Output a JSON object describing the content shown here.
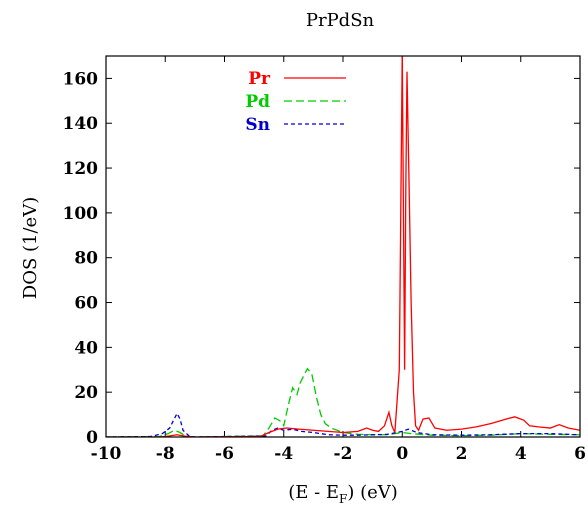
{
  "chart_data": {
    "type": "line",
    "title": "PrPdSn",
    "xlabel": {
      "main": "(E - E",
      "sub": "F",
      "tail": ") (eV)"
    },
    "ylabel": "DOS (1/eV)",
    "xlim": [
      -10,
      6
    ],
    "ylim": [
      0,
      170
    ],
    "xticks": [
      -10,
      -8,
      -6,
      -4,
      -2,
      0,
      2,
      4,
      6
    ],
    "yticks": [
      0,
      20,
      40,
      60,
      80,
      100,
      120,
      140,
      160
    ],
    "legend_position": "top-left (inside plot)",
    "series": [
      {
        "name": "Pr",
        "color": "#ff0000",
        "dash": "solid",
        "points": [
          [
            -10,
            0
          ],
          [
            -8.2,
            0
          ],
          [
            -7.9,
            0.4
          ],
          [
            -7.6,
            1
          ],
          [
            -7.3,
            0.3
          ],
          [
            -7,
            0
          ],
          [
            -4.8,
            0.2
          ],
          [
            -4.5,
            2
          ],
          [
            -4.2,
            3.5
          ],
          [
            -3.9,
            4
          ],
          [
            -3.5,
            3.5
          ],
          [
            -3,
            3
          ],
          [
            -2.5,
            2.5
          ],
          [
            -2,
            2
          ],
          [
            -1.5,
            2.5
          ],
          [
            -1.2,
            4
          ],
          [
            -1,
            3
          ],
          [
            -0.8,
            2.5
          ],
          [
            -0.6,
            5
          ],
          [
            -0.45,
            11
          ],
          [
            -0.35,
            5
          ],
          [
            -0.25,
            2
          ],
          [
            -0.1,
            30
          ],
          [
            -0.05,
            100
          ],
          [
            0,
            172
          ],
          [
            0.04,
            100
          ],
          [
            0.08,
            30
          ],
          [
            0.12,
            110
          ],
          [
            0.16,
            163
          ],
          [
            0.22,
            120
          ],
          [
            0.3,
            60
          ],
          [
            0.38,
            20
          ],
          [
            0.45,
            5
          ],
          [
            0.55,
            3
          ],
          [
            0.7,
            8
          ],
          [
            0.9,
            8.5
          ],
          [
            1.1,
            4
          ],
          [
            1.5,
            3
          ],
          [
            2,
            3.5
          ],
          [
            2.5,
            4.5
          ],
          [
            3,
            6
          ],
          [
            3.5,
            8
          ],
          [
            3.8,
            9
          ],
          [
            4.1,
            7.5
          ],
          [
            4.3,
            5
          ],
          [
            4.6,
            4.5
          ],
          [
            5,
            4
          ],
          [
            5.3,
            5.5
          ],
          [
            5.6,
            4
          ],
          [
            6,
            3
          ]
        ]
      },
      {
        "name": "Pd",
        "color": "#00cc00",
        "dash": "8,4",
        "points": [
          [
            -10,
            0
          ],
          [
            -8.2,
            0.2
          ],
          [
            -7.9,
            1.5
          ],
          [
            -7.7,
            3
          ],
          [
            -7.5,
            2
          ],
          [
            -7.3,
            0.3
          ],
          [
            -7,
            0
          ],
          [
            -4.7,
            0.5
          ],
          [
            -4.5,
            4
          ],
          [
            -4.3,
            8.5
          ],
          [
            -4.1,
            7
          ],
          [
            -4,
            5
          ],
          [
            -3.85,
            14
          ],
          [
            -3.7,
            22
          ],
          [
            -3.55,
            19
          ],
          [
            -3.45,
            24
          ],
          [
            -3.3,
            28
          ],
          [
            -3.2,
            30.5
          ],
          [
            -3.05,
            28
          ],
          [
            -2.9,
            18
          ],
          [
            -2.75,
            10
          ],
          [
            -2.6,
            6
          ],
          [
            -2.4,
            4
          ],
          [
            -2.2,
            3
          ],
          [
            -2,
            2
          ],
          [
            -1.5,
            1.2
          ],
          [
            -1,
            1
          ],
          [
            -0.5,
            1
          ],
          [
            0,
            2
          ],
          [
            0.3,
            1.5
          ],
          [
            1,
            0.8
          ],
          [
            2,
            0.6
          ],
          [
            3,
            0.8
          ],
          [
            4,
            1.5
          ],
          [
            5,
            1.2
          ],
          [
            6,
            1
          ]
        ]
      },
      {
        "name": "Sn",
        "color": "#0000cc",
        "dash": "4,3",
        "points": [
          [
            -10,
            0
          ],
          [
            -8.5,
            0.2
          ],
          [
            -8.1,
            1.5
          ],
          [
            -7.85,
            4
          ],
          [
            -7.7,
            8
          ],
          [
            -7.6,
            10.5
          ],
          [
            -7.5,
            8
          ],
          [
            -7.4,
            3
          ],
          [
            -7.2,
            0.5
          ],
          [
            -7,
            0
          ],
          [
            -4.6,
            0.5
          ],
          [
            -4.4,
            3
          ],
          [
            -4.2,
            4
          ],
          [
            -4,
            3
          ],
          [
            -3.7,
            3.5
          ],
          [
            -3.4,
            2.5
          ],
          [
            -3,
            2
          ],
          [
            -2.5,
            1
          ],
          [
            -2,
            0.8
          ],
          [
            -1.5,
            0.8
          ],
          [
            -1,
            1
          ],
          [
            -0.5,
            1.2
          ],
          [
            0,
            2.5
          ],
          [
            0.2,
            3.5
          ],
          [
            0.5,
            2
          ],
          [
            1,
            1
          ],
          [
            2,
            0.8
          ],
          [
            3,
            1
          ],
          [
            4,
            1.5
          ],
          [
            5,
            1.5
          ],
          [
            6,
            1
          ]
        ]
      }
    ]
  }
}
